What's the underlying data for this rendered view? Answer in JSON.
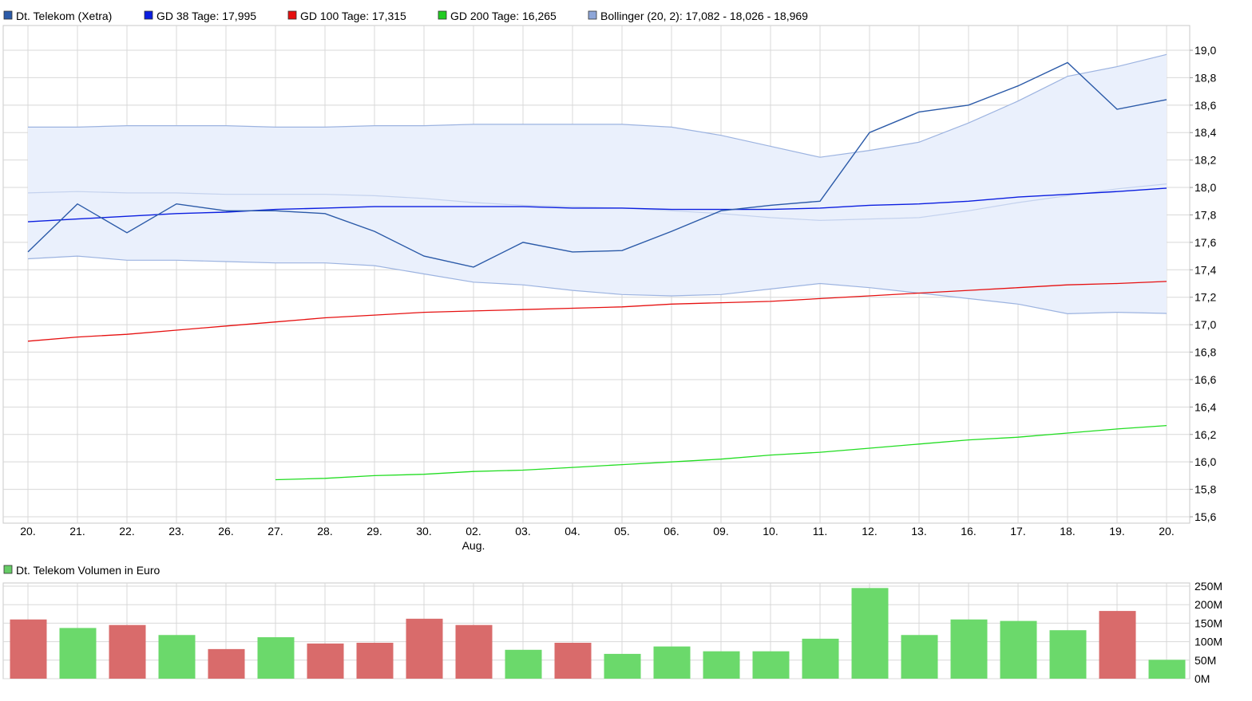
{
  "legend": [
    {
      "label": "Dt. Telekom (Xetra)",
      "color": "#2b5aa8"
    },
    {
      "label": "GD 38 Tage: 17,995",
      "color": "#0b1ee0"
    },
    {
      "label": "GD 100 Tage: 17,315",
      "color": "#e61010"
    },
    {
      "label": "GD 200 Tage: 16,265",
      "color": "#22cc22"
    },
    {
      "label": "Bollinger (20, 2): 17,082 - 18,026 - 18,969",
      "color": "#8ea6d8"
    }
  ],
  "volume_legend": {
    "label": "Dt. Telekom Volumen in Euro",
    "color": "#66cc66"
  },
  "colors": {
    "grid": "#d8d8d8",
    "price": "#2b5aa8",
    "gd38": "#0b1ee0",
    "gd100": "#e61010",
    "gd200": "#22dd22",
    "band_fill": "#eaf0fc",
    "band_line": "#9cb3e0",
    "band_mid": "#c4d2ee",
    "vol_up": "#6bd96b",
    "vol_down": "#d96b6b"
  },
  "chart_data": [
    {
      "type": "line",
      "x": [
        "20.",
        "21.",
        "22.",
        "23.",
        "26.",
        "27.",
        "28.",
        "29.",
        "30.",
        "02.",
        "03.",
        "04.",
        "05.",
        "06.",
        "09.",
        "10.",
        "11.",
        "12.",
        "13.",
        "16.",
        "17.",
        "18.",
        "19.",
        "20."
      ],
      "x_sublabels": {
        "9": "Aug."
      },
      "ylim": [
        15.6,
        19.1
      ],
      "yticks": [
        "15,6",
        "15,8",
        "16,0",
        "16,2",
        "16,4",
        "16,6",
        "16,8",
        "17,0",
        "17,2",
        "17,4",
        "17,6",
        "17,8",
        "18,0",
        "18,2",
        "18,4",
        "18,6",
        "18,8",
        "19,0"
      ],
      "grid": true,
      "legend_position": "top-left",
      "series": [
        {
          "name": "Dt. Telekom (Xetra)",
          "values": [
            17.53,
            17.88,
            17.67,
            17.88,
            17.83,
            17.83,
            17.81,
            17.68,
            17.5,
            17.42,
            17.6,
            17.53,
            17.54,
            17.68,
            17.83,
            17.87,
            17.9,
            18.4,
            18.55,
            18.6,
            18.74,
            18.91,
            18.57,
            18.64
          ]
        },
        {
          "name": "GD 38 Tage",
          "values": [
            17.75,
            17.77,
            17.79,
            17.81,
            17.82,
            17.84,
            17.85,
            17.86,
            17.86,
            17.86,
            17.86,
            17.85,
            17.85,
            17.84,
            17.84,
            17.84,
            17.85,
            17.87,
            17.88,
            17.9,
            17.93,
            17.95,
            17.97,
            17.995
          ]
        },
        {
          "name": "GD 100 Tage",
          "values": [
            16.88,
            16.91,
            16.93,
            16.96,
            16.99,
            17.02,
            17.05,
            17.07,
            17.09,
            17.1,
            17.11,
            17.12,
            17.13,
            17.15,
            17.16,
            17.17,
            17.19,
            17.21,
            17.23,
            17.25,
            17.27,
            17.29,
            17.3,
            17.315
          ]
        },
        {
          "name": "GD 200 Tage",
          "values": [
            null,
            null,
            null,
            null,
            null,
            15.87,
            15.88,
            15.9,
            15.91,
            15.93,
            15.94,
            15.96,
            15.98,
            16.0,
            16.02,
            16.05,
            16.07,
            16.1,
            16.13,
            16.16,
            16.18,
            16.21,
            16.24,
            16.265
          ]
        },
        {
          "name": "Bollinger (20, 2)",
          "upper": [
            18.44,
            18.44,
            18.45,
            18.45,
            18.45,
            18.44,
            18.44,
            18.45,
            18.45,
            18.46,
            18.46,
            18.46,
            18.46,
            18.44,
            18.38,
            18.3,
            18.22,
            18.27,
            18.33,
            18.47,
            18.63,
            18.81,
            18.88,
            18.969
          ],
          "middle": [
            17.96,
            17.97,
            17.96,
            17.96,
            17.95,
            17.95,
            17.95,
            17.94,
            17.92,
            17.89,
            17.87,
            17.86,
            17.85,
            17.83,
            17.81,
            17.78,
            17.76,
            17.77,
            17.78,
            17.83,
            17.89,
            17.94,
            17.99,
            18.026
          ],
          "lower": [
            17.48,
            17.5,
            17.47,
            17.47,
            17.46,
            17.45,
            17.45,
            17.43,
            17.37,
            17.31,
            17.29,
            17.25,
            17.22,
            17.21,
            17.22,
            17.26,
            17.3,
            17.27,
            17.23,
            17.19,
            17.15,
            17.08,
            17.09,
            17.082
          ]
        }
      ]
    },
    {
      "type": "bar",
      "name": "Dt. Telekom Volumen in Euro",
      "ylim": [
        0,
        250
      ],
      "yticks": [
        "0M",
        "50M",
        "100M",
        "150M",
        "200M",
        "250M"
      ],
      "values": [
        160,
        137,
        145,
        118,
        80,
        112,
        95,
        97,
        162,
        145,
        78,
        97,
        67,
        87,
        74,
        74,
        108,
        245,
        118,
        160,
        156,
        131,
        183,
        51
      ],
      "direction": [
        "down",
        "up",
        "down",
        "up",
        "down",
        "up",
        "down",
        "down",
        "down",
        "down",
        "up",
        "down",
        "up",
        "up",
        "up",
        "up",
        "up",
        "up",
        "up",
        "up",
        "up",
        "up",
        "down",
        "up"
      ]
    }
  ]
}
